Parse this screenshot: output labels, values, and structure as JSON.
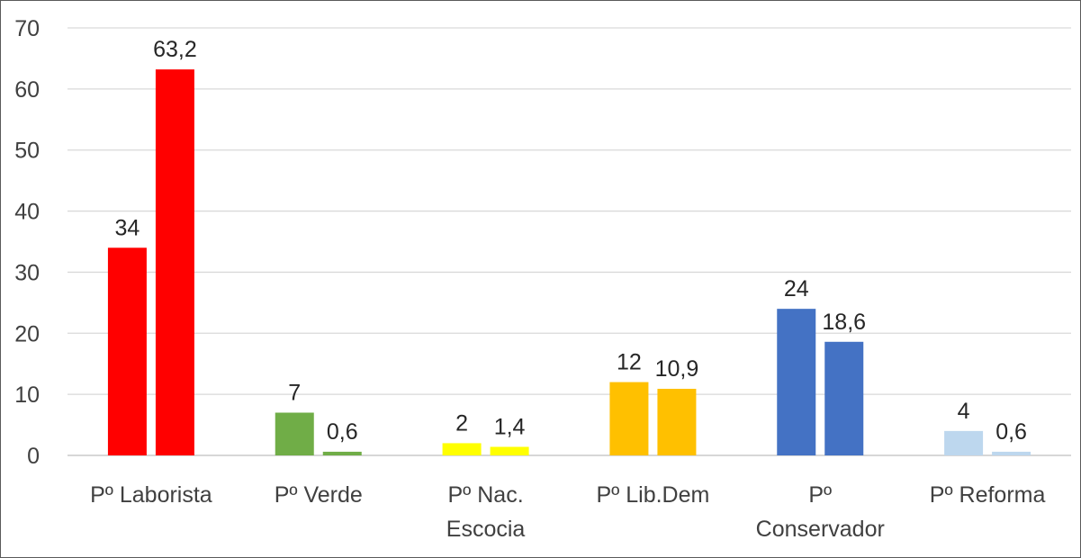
{
  "chart_data": {
    "type": "bar",
    "title": "",
    "xlabel": "",
    "ylabel": "",
    "ylim": [
      0,
      70
    ],
    "y_ticks": [
      "0",
      "10",
      "20",
      "30",
      "40",
      "50",
      "60",
      "70"
    ],
    "grid": true,
    "categories": [
      [
        "Pº Laborista"
      ],
      [
        "Pº Verde"
      ],
      [
        "Pº Nac.",
        "Escocia"
      ],
      [
        "Pº Lib.Dem"
      ],
      [
        "Pº",
        "Conservador"
      ],
      [
        "Pº Reforma"
      ]
    ],
    "series": [
      {
        "values": [
          34,
          7,
          2,
          12,
          24,
          4
        ],
        "labels": [
          "34",
          "7",
          "2",
          "12",
          "24",
          "4"
        ]
      },
      {
        "values": [
          63.2,
          0.6,
          1.4,
          10.9,
          18.6,
          0.6
        ],
        "labels": [
          "63,2",
          "0,6",
          "1,4",
          "10,9",
          "18,6",
          "0,6"
        ]
      }
    ],
    "category_colors": [
      "#ff0000",
      "#70ad47",
      "#ffff00",
      "#ffc000",
      "#4472c4",
      "#bdd7ee"
    ]
  }
}
